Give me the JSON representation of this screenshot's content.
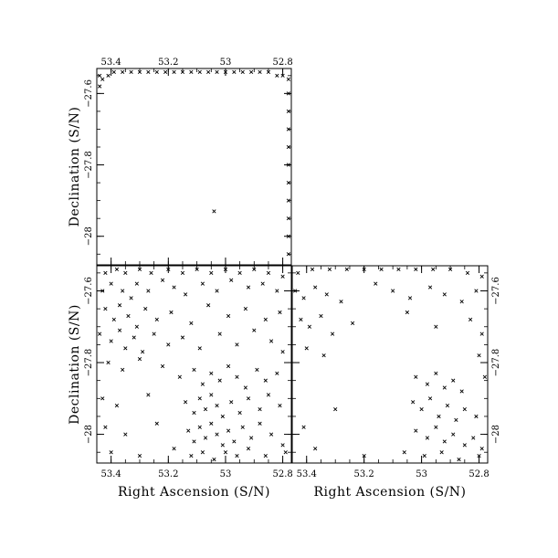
{
  "chart_data": [
    {
      "type": "scatter",
      "panel": "top-left",
      "xlabel": "",
      "ylabel": "Declination (S/N)",
      "xlim": [
        53.45,
        52.77
      ],
      "ylim": [
        -28.08,
        -27.53
      ],
      "xticks": [
        {
          "value": 53.4,
          "label": "53.4"
        },
        {
          "value": 53.2,
          "label": "53.2"
        },
        {
          "value": 53.0,
          "label": "53"
        },
        {
          "value": 52.8,
          "label": "52.8"
        }
      ],
      "yticks": [
        {
          "value": -27.6,
          "label": "−27.6"
        },
        {
          "value": -27.8,
          "label": "−27.8"
        },
        {
          "value": -28.0,
          "label": "−28"
        }
      ],
      "x_ticks_position": "top",
      "y_ticks_position": "left",
      "marker": "x",
      "points": [
        [
          53.44,
          -27.55
        ],
        [
          53.43,
          -27.56
        ],
        [
          53.41,
          -27.55
        ],
        [
          53.39,
          -27.54
        ],
        [
          53.36,
          -27.54
        ],
        [
          53.33,
          -27.54
        ],
        [
          53.3,
          -27.54
        ],
        [
          53.27,
          -27.54
        ],
        [
          53.24,
          -27.54
        ],
        [
          53.21,
          -27.54
        ],
        [
          53.18,
          -27.54
        ],
        [
          53.15,
          -27.54
        ],
        [
          53.12,
          -27.54
        ],
        [
          53.09,
          -27.54
        ],
        [
          53.06,
          -27.54
        ],
        [
          53.03,
          -27.54
        ],
        [
          53.0,
          -27.54
        ],
        [
          52.97,
          -27.54
        ],
        [
          52.94,
          -27.54
        ],
        [
          52.91,
          -27.54
        ],
        [
          52.88,
          -27.54
        ],
        [
          52.85,
          -27.54
        ],
        [
          52.82,
          -27.55
        ],
        [
          52.8,
          -27.55
        ],
        [
          52.78,
          -27.56
        ],
        [
          53.44,
          -27.58
        ],
        [
          52.78,
          -27.6
        ],
        [
          52.78,
          -27.65
        ],
        [
          52.78,
          -27.7
        ],
        [
          52.78,
          -27.75
        ],
        [
          52.78,
          -27.8
        ],
        [
          52.78,
          -27.85
        ],
        [
          52.78,
          -27.9
        ],
        [
          52.78,
          -27.95
        ],
        [
          52.78,
          -28.0
        ],
        [
          52.78,
          -28.05
        ],
        [
          53.04,
          -27.93
        ]
      ]
    },
    {
      "type": "scatter",
      "panel": "bottom-left",
      "xlabel": "Right Ascension (S/N)",
      "ylabel": "Declination (S/N)",
      "xlim": [
        53.45,
        52.77
      ],
      "ylim": [
        -28.08,
        -27.53
      ],
      "xticks": [
        {
          "value": 53.4,
          "label": "53.4"
        },
        {
          "value": 53.2,
          "label": "53.2"
        },
        {
          "value": 53.0,
          "label": "53"
        },
        {
          "value": 52.8,
          "label": "52.8"
        }
      ],
      "yticks": [
        {
          "value": -27.6,
          "label": "−27.6"
        },
        {
          "value": -27.8,
          "label": "−27.8"
        },
        {
          "value": -28.0,
          "label": "−28"
        }
      ],
      "x_ticks_position": "bottom",
      "y_ticks_position": "left",
      "marker": "x",
      "points": [
        [
          53.42,
          -27.55
        ],
        [
          53.38,
          -27.54
        ],
        [
          53.35,
          -27.55
        ],
        [
          53.3,
          -27.54
        ],
        [
          53.26,
          -27.55
        ],
        [
          53.2,
          -27.54
        ],
        [
          53.15,
          -27.55
        ],
        [
          53.1,
          -27.54
        ],
        [
          53.05,
          -27.55
        ],
        [
          53.0,
          -27.54
        ],
        [
          52.95,
          -27.55
        ],
        [
          52.9,
          -27.54
        ],
        [
          52.85,
          -27.55
        ],
        [
          52.8,
          -27.56
        ],
        [
          53.43,
          -27.6
        ],
        [
          53.4,
          -27.58
        ],
        [
          53.36,
          -27.6
        ],
        [
          53.33,
          -27.62
        ],
        [
          53.31,
          -27.58
        ],
        [
          53.27,
          -27.6
        ],
        [
          53.22,
          -27.57
        ],
        [
          53.18,
          -27.59
        ],
        [
          53.14,
          -27.61
        ],
        [
          53.08,
          -27.58
        ],
        [
          53.03,
          -27.6
        ],
        [
          52.98,
          -27.57
        ],
        [
          52.92,
          -27.59
        ],
        [
          52.87,
          -27.58
        ],
        [
          52.82,
          -27.6
        ],
        [
          53.42,
          -27.65
        ],
        [
          53.39,
          -27.68
        ],
        [
          53.37,
          -27.64
        ],
        [
          53.34,
          -27.67
        ],
        [
          53.31,
          -27.7
        ],
        [
          53.28,
          -27.65
        ],
        [
          53.24,
          -27.68
        ],
        [
          53.19,
          -27.66
        ],
        [
          53.12,
          -27.69
        ],
        [
          53.06,
          -27.64
        ],
        [
          52.99,
          -27.67
        ],
        [
          52.93,
          -27.65
        ],
        [
          52.86,
          -27.68
        ],
        [
          52.81,
          -27.66
        ],
        [
          53.44,
          -27.72
        ],
        [
          53.4,
          -27.74
        ],
        [
          53.37,
          -27.71
        ],
        [
          53.35,
          -27.76
        ],
        [
          53.32,
          -27.73
        ],
        [
          53.29,
          -27.77
        ],
        [
          53.25,
          -27.72
        ],
        [
          53.2,
          -27.75
        ],
        [
          53.15,
          -27.73
        ],
        [
          53.09,
          -27.76
        ],
        [
          53.02,
          -27.72
        ],
        [
          52.96,
          -27.75
        ],
        [
          52.9,
          -27.71
        ],
        [
          52.84,
          -27.74
        ],
        [
          52.8,
          -27.77
        ],
        [
          53.41,
          -27.8
        ],
        [
          53.36,
          -27.82
        ],
        [
          53.3,
          -27.79
        ],
        [
          53.22,
          -27.81
        ],
        [
          53.16,
          -27.84
        ],
        [
          53.11,
          -27.82
        ],
        [
          53.08,
          -27.86
        ],
        [
          53.05,
          -27.83
        ],
        [
          53.02,
          -27.85
        ],
        [
          52.99,
          -27.81
        ],
        [
          52.96,
          -27.84
        ],
        [
          52.93,
          -27.87
        ],
        [
          52.89,
          -27.82
        ],
        [
          52.86,
          -27.85
        ],
        [
          52.82,
          -27.83
        ],
        [
          53.43,
          -27.9
        ],
        [
          53.38,
          -27.92
        ],
        [
          53.27,
          -27.89
        ],
        [
          53.14,
          -27.91
        ],
        [
          53.11,
          -27.94
        ],
        [
          53.09,
          -27.9
        ],
        [
          53.07,
          -27.93
        ],
        [
          53.05,
          -27.89
        ],
        [
          53.03,
          -27.92
        ],
        [
          53.01,
          -27.95
        ],
        [
          52.98,
          -27.91
        ],
        [
          52.95,
          -27.94
        ],
        [
          52.92,
          -27.9
        ],
        [
          52.88,
          -27.93
        ],
        [
          52.85,
          -27.89
        ],
        [
          52.81,
          -27.92
        ],
        [
          53.42,
          -27.98
        ],
        [
          53.35,
          -28.0
        ],
        [
          53.24,
          -27.97
        ],
        [
          53.13,
          -27.99
        ],
        [
          53.11,
          -28.02
        ],
        [
          53.09,
          -27.98
        ],
        [
          53.07,
          -28.01
        ],
        [
          53.05,
          -27.97
        ],
        [
          53.03,
          -28.0
        ],
        [
          53.01,
          -28.03
        ],
        [
          52.99,
          -27.99
        ],
        [
          52.97,
          -28.02
        ],
        [
          52.94,
          -27.98
        ],
        [
          52.91,
          -28.01
        ],
        [
          52.88,
          -27.97
        ],
        [
          52.84,
          -28.0
        ],
        [
          52.8,
          -28.03
        ],
        [
          53.4,
          -28.05
        ],
        [
          53.3,
          -28.06
        ],
        [
          53.18,
          -28.04
        ],
        [
          53.12,
          -28.06
        ],
        [
          53.08,
          -28.05
        ],
        [
          53.04,
          -28.07
        ],
        [
          53.0,
          -28.05
        ],
        [
          52.96,
          -28.06
        ],
        [
          52.92,
          -28.04
        ],
        [
          52.86,
          -28.06
        ],
        [
          52.79,
          -28.05
        ]
      ]
    },
    {
      "type": "scatter",
      "panel": "bottom-right",
      "xlabel": "Right Ascension (S/N)",
      "ylabel": "",
      "xlim": [
        53.45,
        52.77
      ],
      "ylim": [
        -28.08,
        -27.53
      ],
      "xticks": [
        {
          "value": 53.4,
          "label": "53.4"
        },
        {
          "value": 53.2,
          "label": "53.2"
        },
        {
          "value": 53.0,
          "label": "53"
        },
        {
          "value": 52.8,
          "label": "52.8"
        }
      ],
      "yticks": [
        {
          "value": -27.6,
          "label": "−27.6"
        },
        {
          "value": -27.8,
          "label": "−27.8"
        },
        {
          "value": -28.0,
          "label": "−28"
        }
      ],
      "x_ticks_position": "bottom",
      "y_ticks_position": "right",
      "marker": "x",
      "points": [
        [
          53.43,
          -27.55
        ],
        [
          53.38,
          -27.54
        ],
        [
          53.32,
          -27.54
        ],
        [
          53.26,
          -27.54
        ],
        [
          53.2,
          -27.54
        ],
        [
          53.14,
          -27.54
        ],
        [
          53.08,
          -27.54
        ],
        [
          53.02,
          -27.54
        ],
        [
          52.96,
          -27.54
        ],
        [
          52.9,
          -27.54
        ],
        [
          52.84,
          -27.55
        ],
        [
          52.79,
          -27.56
        ],
        [
          53.44,
          -27.6
        ],
        [
          53.41,
          -27.62
        ],
        [
          53.37,
          -27.59
        ],
        [
          53.33,
          -27.61
        ],
        [
          53.28,
          -27.63
        ],
        [
          53.16,
          -27.58
        ],
        [
          53.1,
          -27.6
        ],
        [
          53.04,
          -27.62
        ],
        [
          52.97,
          -27.59
        ],
        [
          52.92,
          -27.61
        ],
        [
          52.86,
          -27.63
        ],
        [
          52.81,
          -27.6
        ],
        [
          53.42,
          -27.68
        ],
        [
          53.39,
          -27.7
        ],
        [
          53.35,
          -27.67
        ],
        [
          53.31,
          -27.72
        ],
        [
          53.24,
          -27.69
        ],
        [
          53.05,
          -27.66
        ],
        [
          52.95,
          -27.7
        ],
        [
          52.83,
          -27.68
        ],
        [
          52.79,
          -27.72
        ],
        [
          53.4,
          -27.76
        ],
        [
          53.34,
          -27.78
        ],
        [
          52.8,
          -27.78
        ],
        [
          52.78,
          -27.84
        ],
        [
          53.02,
          -27.84
        ],
        [
          52.98,
          -27.86
        ],
        [
          52.95,
          -27.83
        ],
        [
          52.92,
          -27.87
        ],
        [
          52.89,
          -27.85
        ],
        [
          52.86,
          -27.88
        ],
        [
          53.03,
          -27.91
        ],
        [
          53.0,
          -27.93
        ],
        [
          52.97,
          -27.9
        ],
        [
          52.94,
          -27.95
        ],
        [
          52.91,
          -27.92
        ],
        [
          52.88,
          -27.96
        ],
        [
          52.85,
          -27.93
        ],
        [
          52.81,
          -27.95
        ],
        [
          53.3,
          -27.93
        ],
        [
          53.41,
          -27.98
        ],
        [
          53.02,
          -27.99
        ],
        [
          52.98,
          -28.01
        ],
        [
          52.95,
          -27.98
        ],
        [
          52.92,
          -28.02
        ],
        [
          52.89,
          -28.0
        ],
        [
          52.85,
          -28.03
        ],
        [
          52.82,
          -28.01
        ],
        [
          52.79,
          -28.04
        ],
        [
          53.37,
          -28.04
        ],
        [
          53.2,
          -28.06
        ],
        [
          53.06,
          -28.05
        ],
        [
          52.99,
          -28.06
        ],
        [
          52.93,
          -28.05
        ],
        [
          52.87,
          -28.07
        ],
        [
          52.8,
          -28.06
        ]
      ]
    }
  ]
}
